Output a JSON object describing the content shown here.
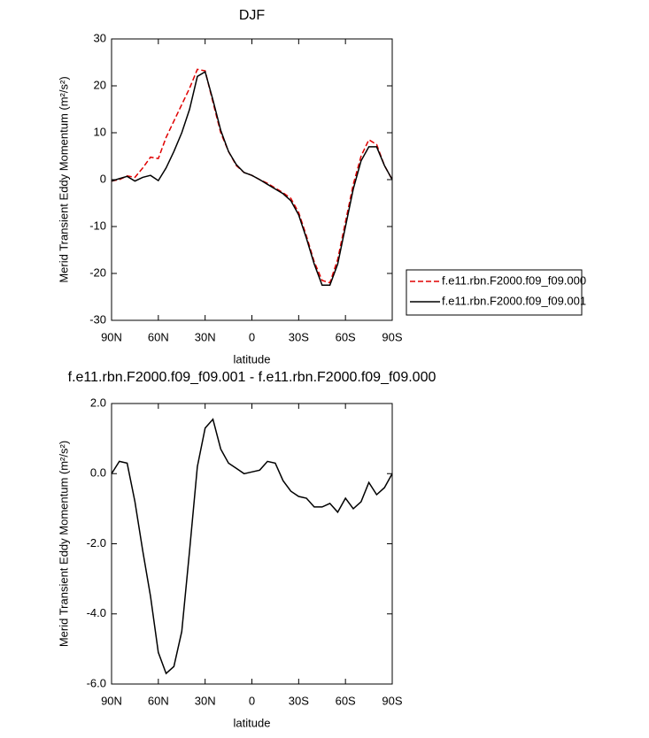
{
  "chart_data": [
    {
      "type": "line",
      "title": "DJF",
      "xlabel": "latitude",
      "ylabel": "Merid Transient Eddy Momentum (m²/s²)",
      "x": [
        90,
        85,
        80,
        75,
        70,
        65,
        60,
        55,
        50,
        45,
        40,
        35,
        30,
        25,
        20,
        15,
        10,
        5,
        0,
        -5,
        -10,
        -15,
        -20,
        -25,
        -30,
        -35,
        -40,
        -45,
        -50,
        -55,
        -60,
        -65,
        -70,
        -75,
        -80,
        -85,
        -90
      ],
      "series": [
        {
          "name": "f.e11.rbn.F2000.f09_f09.000",
          "color": "#e00000",
          "linestyle": "dashed",
          "values": [
            -0.3,
            0,
            0.8,
            0.5,
            2.5,
            4.8,
            4.5,
            9,
            12.5,
            16,
            19.5,
            23.5,
            23.2,
            16.5,
            10,
            6,
            3,
            1.5,
            0.9,
            0,
            -0.8,
            -1.8,
            -2.8,
            -4,
            -7,
            -12,
            -17.5,
            -21.5,
            -22,
            -17,
            -9,
            -1,
            5,
            8.5,
            7.5,
            3,
            0
          ]
        },
        {
          "name": "f.e11.rbn.F2000.f09_f09.001",
          "color": "#000000",
          "linestyle": "solid",
          "values": [
            -0.3,
            0.2,
            0.7,
            -0.3,
            0.5,
            0.9,
            -0.2,
            2.5,
            6,
            10,
            15,
            22,
            23,
            17,
            10.5,
            6,
            3.2,
            1.5,
            0.9,
            0,
            -1,
            -2,
            -3,
            -4.5,
            -7.5,
            -12.5,
            -18,
            -22.5,
            -22.5,
            -18,
            -10,
            -2,
            4,
            7,
            7,
            3,
            0
          ]
        }
      ],
      "xlim": [
        90,
        -90
      ],
      "xticks": [
        {
          "value": 90,
          "label": "90N"
        },
        {
          "value": 60,
          "label": "60N"
        },
        {
          "value": 30,
          "label": "30N"
        },
        0,
        {
          "value": -30,
          "label": "30S"
        },
        {
          "value": -60,
          "label": "60S"
        },
        {
          "value": -90,
          "label": "90S"
        }
      ],
      "ylim": [
        -30,
        30
      ],
      "yticks": [
        -30,
        -20,
        -10,
        0,
        10,
        20,
        30
      ],
      "legend": "outside-right"
    },
    {
      "type": "line",
      "title": "f.e11.rbn.F2000.f09_f09.001 - f.e11.rbn.F2000.f09_f09.000",
      "xlabel": "latitude",
      "ylabel": "Merid Transient Eddy Momentum (m²/s²)",
      "x": [
        90,
        85,
        80,
        75,
        70,
        65,
        60,
        55,
        50,
        45,
        40,
        35,
        30,
        25,
        20,
        15,
        10,
        5,
        0,
        -5,
        -10,
        -15,
        -20,
        -25,
        -30,
        -35,
        -40,
        -45,
        -50,
        -55,
        -60,
        -65,
        -70,
        -75,
        -80,
        -85,
        -90
      ],
      "series": [
        {
          "color": "#000000",
          "linestyle": "solid",
          "values": [
            0,
            0.35,
            0.3,
            -0.8,
            -2.2,
            -3.5,
            -5.1,
            -5.7,
            -5.5,
            -4.5,
            -2.2,
            0.2,
            1.3,
            1.55,
            0.7,
            0.3,
            0.15,
            0,
            0.05,
            0.1,
            0.35,
            0.3,
            -0.2,
            -0.5,
            -0.65,
            -0.7,
            -0.95,
            -0.95,
            -0.85,
            -1.1,
            -0.7,
            -1.0,
            -0.8,
            -0.25,
            -0.6,
            -0.4,
            0
          ]
        }
      ],
      "xlim": [
        90,
        -90
      ],
      "xticks": [
        {
          "value": 90,
          "label": "90N"
        },
        {
          "value": 60,
          "label": "60N"
        },
        {
          "value": 30,
          "label": "30N"
        },
        0,
        {
          "value": -30,
          "label": "30S"
        },
        {
          "value": -60,
          "label": "60S"
        },
        {
          "value": -90,
          "label": "90S"
        }
      ],
      "ylim": [
        -6,
        2
      ],
      "yticks": [
        {
          "value": -6,
          "label": "-6.0"
        },
        {
          "value": -4,
          "label": "-4.0"
        },
        {
          "value": -2,
          "label": "-2.0"
        },
        {
          "value": 0,
          "label": "0.0"
        },
        {
          "value": 2,
          "label": "2.0"
        }
      ]
    }
  ]
}
